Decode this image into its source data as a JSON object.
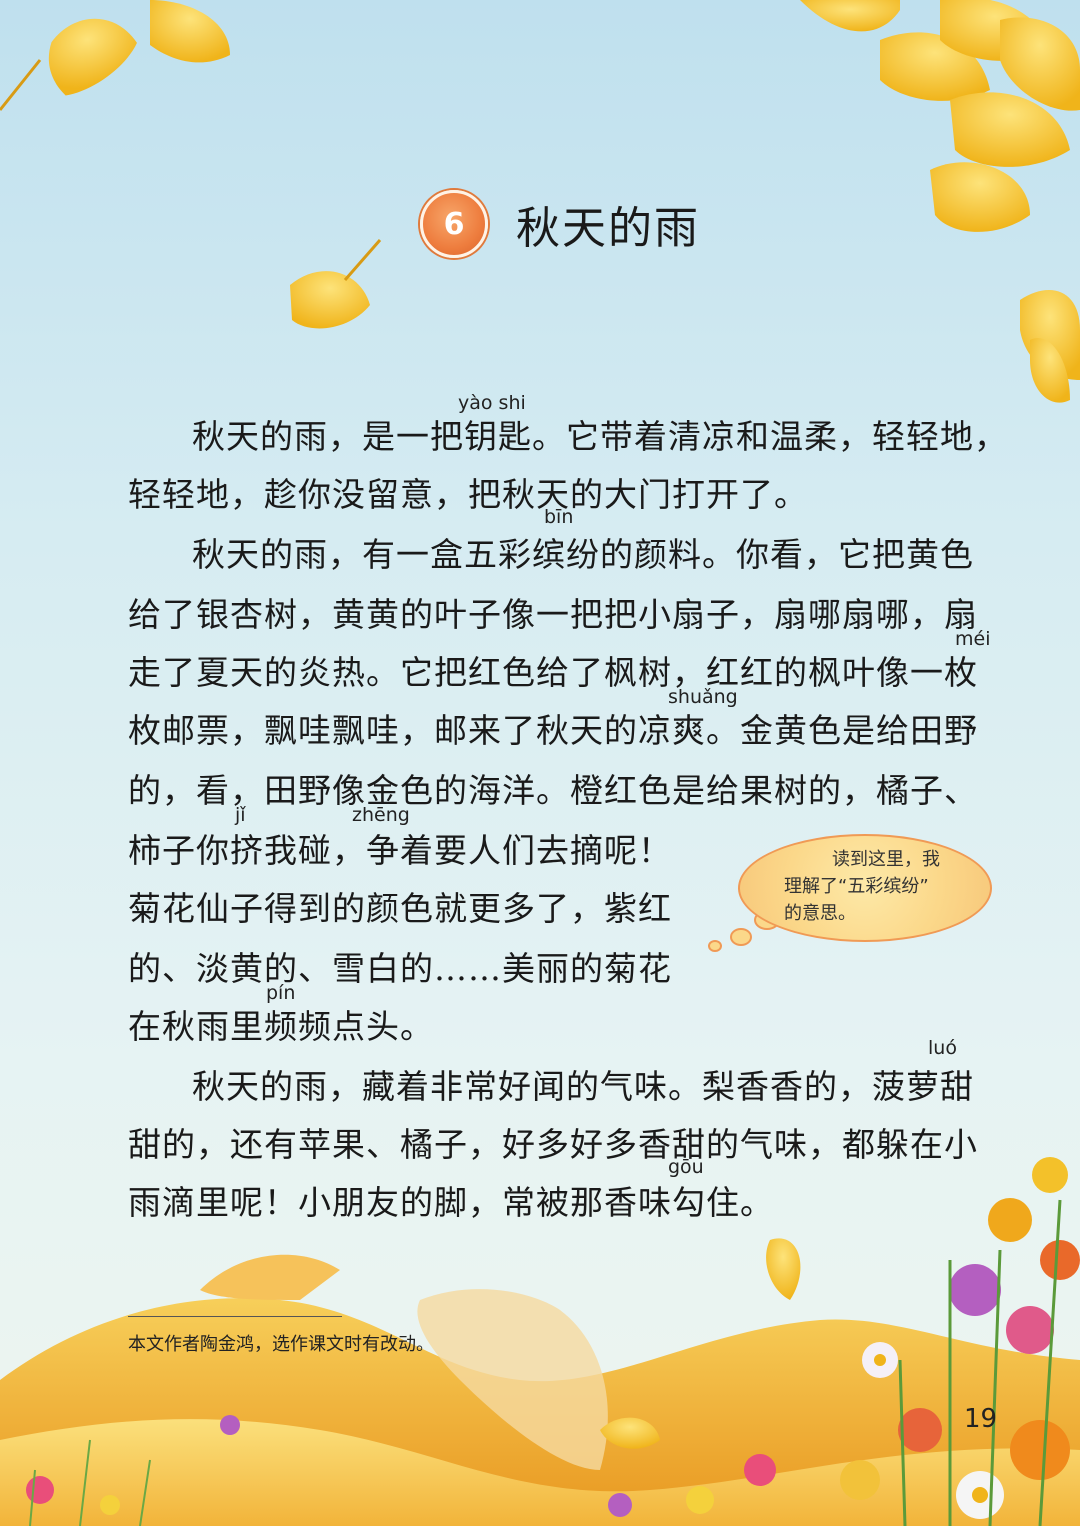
{
  "lesson": {
    "number": "6",
    "title": "秋天的雨"
  },
  "paragraphs": [
    "秋天的雨，是一把钥匙。它带着清凉和温柔，轻轻地，",
    "轻轻地，趁你没留意，把秋天的大门打开了。",
    "秋天的雨，有一盒五彩缤纷的颜料。你看，它把黄色",
    "给了银杏树，黄黄的叶子像一把把小扇子，扇哪扇哪，扇",
    "走了夏天的炎热。它把红色给了枫树，红红的枫叶像一枚",
    "枚邮票，飘哇飘哇，邮来了秋天的凉爽。金黄色是给田野",
    "的，看，田野像金色的海洋。橙红色是给果树的，橘子、",
    "柿子你挤我碰，争着要人们去摘呢！",
    "菊花仙子得到的颜色就更多了，紫红",
    "的、淡黄的、雪白的……美丽的菊花",
    "在秋雨里频频点头。",
    "秋天的雨，藏着非常好闻的气味。梨香香的，菠萝甜",
    "甜的，还有苹果、橘子，好多好多香甜的气味，都躲在小",
    "雨滴里呢！小朋友的脚，常被那香味勾住。"
  ],
  "pinyin": {
    "yaoshi": "yào shi",
    "bin": "bīn",
    "mei": "méi",
    "shuang": "shuǎng",
    "ji": "jǐ",
    "zheng": "zhēng",
    "pin": "pín",
    "luo": "luó",
    "gou": "gōu"
  },
  "bubble": {
    "line1": "读到这里，我",
    "line2": "理解了“五彩缤纷”",
    "line3": "的意思。"
  },
  "footnote": "本文作者陶金鸿，选作课文时有改动。",
  "page_number": "19"
}
